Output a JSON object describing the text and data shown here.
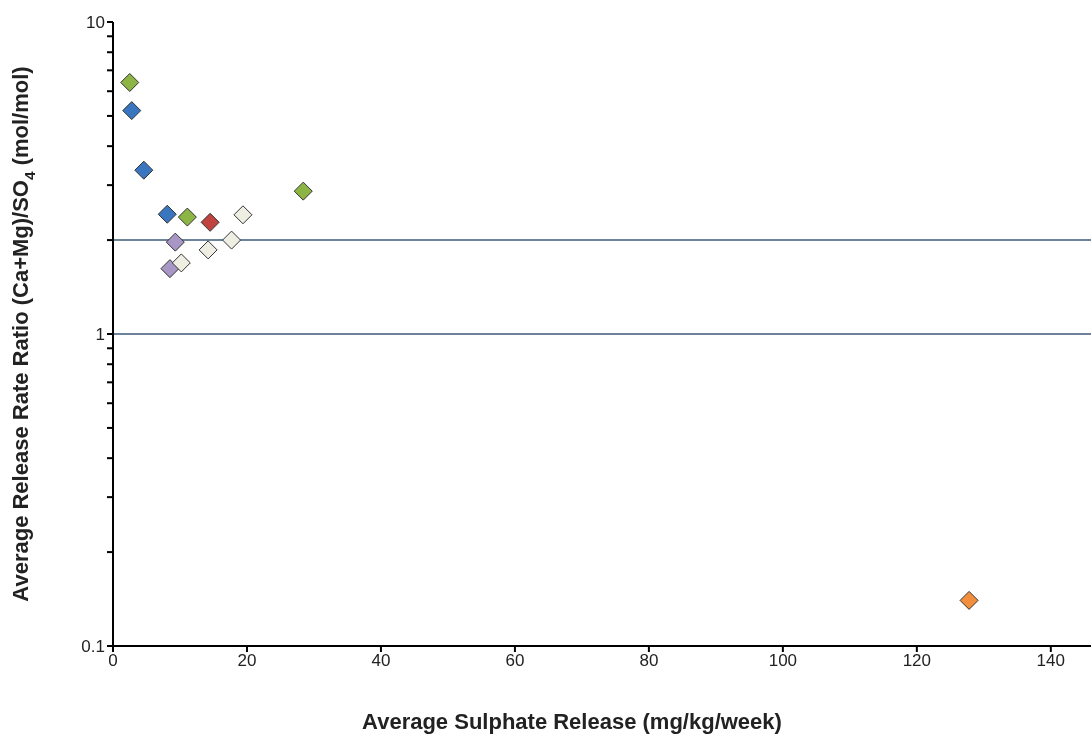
{
  "chart_data": {
    "type": "scatter",
    "xlabel": "Average Sulphate Release (mg/kg/week)",
    "ylabel": "Average Release Rate Ratio (Ca+Mg)/SO$_{4}$ (mol/mol)",
    "log": "y",
    "xlim": [
      0,
      146
    ],
    "xticks": [
      0,
      20,
      40,
      60,
      80,
      100,
      120,
      140
    ],
    "ylim": [
      0.1,
      10
    ],
    "yticks": [
      0.1,
      {
        "value": 0.2,
        "label": null
      },
      {
        "value": 0.3,
        "label": null
      },
      {
        "value": 0.4,
        "label": null
      },
      {
        "value": 0.5,
        "label": null
      },
      {
        "value": 0.6,
        "label": null
      },
      {
        "value": 0.7,
        "label": null
      },
      {
        "value": 0.8,
        "label": null
      },
      {
        "value": 0.9,
        "label": null
      },
      1,
      {
        "value": 2,
        "label": null
      },
      {
        "value": 3,
        "label": null
      },
      {
        "value": 4,
        "label": null
      },
      {
        "value": 5,
        "label": null
      },
      {
        "value": 6,
        "label": null
      },
      {
        "value": 7,
        "label": null
      },
      {
        "value": 8,
        "label": null
      },
      {
        "value": 9,
        "label": null
      },
      10
    ],
    "grid": false,
    "legend": false,
    "marker": "diamond",
    "ref_lines": [
      {
        "axis": "y",
        "value": 1,
        "color": "#3d5a7a"
      },
      {
        "axis": "y",
        "value": 2,
        "color": "#3d5a7a"
      }
    ],
    "series": [
      {
        "color": "#8db545",
        "x": [
          2.5,
          11.1,
          28.4
        ],
        "values": [
          6.4,
          2.37,
          2.87
        ]
      },
      {
        "color": "#3a75c0",
        "x": [
          2.8,
          4.6,
          8.1
        ],
        "values": [
          5.2,
          3.35,
          2.42
        ]
      },
      {
        "color": "#c0433f",
        "x": [
          14.5
        ],
        "values": [
          2.28
        ]
      },
      {
        "color": "#a896c4",
        "x": [
          9.3,
          8.5
        ],
        "values": [
          1.97,
          1.62
        ]
      },
      {
        "color": "#eeeee2",
        "x": [
          10.2,
          14.2,
          17.7,
          19.4
        ],
        "values": [
          1.69,
          1.86,
          2.0,
          2.41
        ]
      },
      {
        "color": "#f28f3c",
        "x": [
          127.8
        ],
        "values": [
          0.14
        ]
      }
    ]
  }
}
